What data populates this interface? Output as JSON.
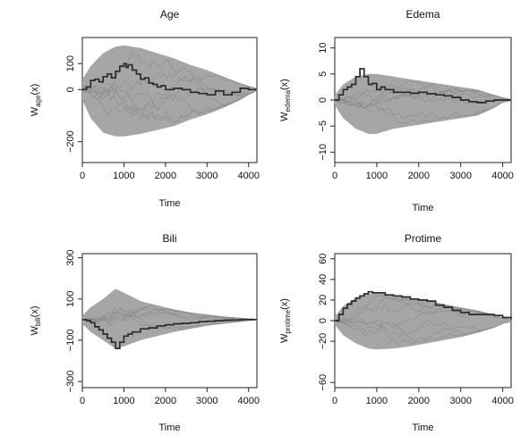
{
  "chart_data": [
    {
      "type": "line",
      "title": "Age",
      "xlabel": "Time",
      "ylabel_main": "W",
      "ylabel_sub": "age",
      "ylabel_tail": "(x)",
      "xlim": [
        0,
        4200
      ],
      "ylim": [
        -280,
        200
      ],
      "xticks": [
        0,
        1000,
        2000,
        3000,
        4000
      ],
      "yticks": [
        -200,
        0,
        100
      ],
      "xtick_labels": [
        "0",
        "1000",
        "2000",
        "3000",
        "4000"
      ],
      "ytick_labels": [
        "−200",
        "0",
        "100"
      ],
      "band": {
        "x": [
          0,
          200,
          500,
          800,
          1000,
          1400,
          1800,
          2200,
          2600,
          3000,
          3400,
          3800,
          4000,
          4200
        ],
        "upper": [
          40,
          90,
          140,
          165,
          170,
          160,
          140,
          120,
          95,
          75,
          50,
          25,
          15,
          5
        ],
        "lower": [
          -40,
          -110,
          -165,
          -180,
          -180,
          -170,
          -155,
          -140,
          -115,
          -95,
          -70,
          -40,
          -20,
          -5
        ]
      },
      "observed": {
        "x": [
          0,
          100,
          200,
          300,
          400,
          500,
          600,
          700,
          800,
          900,
          1000,
          1050,
          1100,
          1200,
          1300,
          1400,
          1500,
          1600,
          1700,
          1800,
          1900,
          2000,
          2200,
          2400,
          2600,
          2800,
          3000,
          3200,
          3400,
          3600,
          3800,
          4000,
          4200
        ],
        "y": [
          0,
          10,
          35,
          40,
          30,
          50,
          60,
          45,
          70,
          90,
          100,
          85,
          95,
          75,
          60,
          40,
          45,
          25,
          20,
          10,
          15,
          0,
          5,
          0,
          -10,
          -15,
          -20,
          -5,
          -20,
          -10,
          5,
          0,
          0
        ]
      }
    },
    {
      "type": "line",
      "title": "Edema",
      "xlabel": "Time",
      "ylabel_main": "W",
      "ylabel_sub": "edema",
      "ylabel_tail": "(x)",
      "xlim": [
        0,
        4200
      ],
      "ylim": [
        -12,
        12
      ],
      "xticks": [
        0,
        1000,
        2000,
        3000,
        4000
      ],
      "yticks": [
        -10,
        -5,
        0,
        5,
        10
      ],
      "xtick_labels": [
        "0",
        "1000",
        "2000",
        "3000",
        "4000"
      ],
      "ytick_labels": [
        "−10",
        "−5",
        "0",
        "5",
        "10"
      ],
      "band": {
        "x": [
          0,
          200,
          500,
          800,
          1000,
          1400,
          1800,
          2200,
          2600,
          3000,
          3400,
          3800,
          4000,
          4200
        ],
        "upper": [
          1,
          3,
          4.5,
          5,
          5,
          4.5,
          4,
          3.5,
          3,
          2.5,
          2,
          1,
          0.5,
          0.1
        ],
        "lower": [
          -1,
          -3.5,
          -5.5,
          -6.5,
          -6.5,
          -5.5,
          -5,
          -4.5,
          -4,
          -3.5,
          -3,
          -1.5,
          -0.5,
          -0.1
        ]
      },
      "observed": {
        "x": [
          0,
          100,
          200,
          300,
          400,
          500,
          600,
          700,
          800,
          900,
          1000,
          1100,
          1200,
          1400,
          1600,
          1800,
          2000,
          2200,
          2400,
          2600,
          2800,
          3000,
          3200,
          3400,
          3600,
          3800,
          4000,
          4200
        ],
        "y": [
          0,
          1,
          2,
          2.5,
          3,
          4.5,
          6,
          4.5,
          3,
          3.2,
          2,
          2.5,
          2,
          1.5,
          1.5,
          1.3,
          1.5,
          1.2,
          1,
          0.8,
          0.5,
          0,
          -0.3,
          -0.5,
          -0.2,
          0,
          0,
          0
        ]
      }
    },
    {
      "type": "line",
      "title": "Bili",
      "xlabel": "Time",
      "ylabel_main": "W",
      "ylabel_sub": "bili",
      "ylabel_tail": "(x)",
      "xlim": [
        0,
        4200
      ],
      "ylim": [
        -330,
        320
      ],
      "xticks": [
        0,
        1000,
        2000,
        3000,
        4000
      ],
      "yticks": [
        -300,
        -100,
        100,
        300
      ],
      "xtick_labels": [
        "0",
        "1000",
        "2000",
        "3000",
        "4000"
      ],
      "ytick_labels": [
        "−300",
        "−100",
        "100",
        "300"
      ],
      "band": {
        "x": [
          0,
          200,
          500,
          800,
          1000,
          1400,
          1800,
          2200,
          2600,
          3000,
          3400,
          3800,
          4000,
          4200
        ],
        "upper": [
          20,
          60,
          100,
          150,
          130,
          90,
          70,
          50,
          35,
          25,
          15,
          8,
          5,
          2
        ],
        "lower": [
          -20,
          -60,
          -100,
          -140,
          -130,
          -100,
          -80,
          -60,
          -45,
          -30,
          -20,
          -10,
          -5,
          -2
        ]
      },
      "observed": {
        "x": [
          0,
          100,
          200,
          300,
          400,
          500,
          600,
          700,
          800,
          900,
          1000,
          1100,
          1200,
          1400,
          1600,
          1800,
          2000,
          2200,
          2400,
          2600,
          2800,
          3000,
          3200,
          3400,
          3600,
          3800,
          4000,
          4200
        ],
        "y": [
          0,
          -5,
          -15,
          -35,
          -50,
          -70,
          -90,
          -110,
          -140,
          -110,
          -80,
          -70,
          -60,
          -45,
          -40,
          -30,
          -25,
          -20,
          -18,
          -15,
          -10,
          -8,
          -5,
          -3,
          -2,
          0,
          0,
          0
        ]
      }
    },
    {
      "type": "line",
      "title": "Protime",
      "xlabel": "Time",
      "ylabel_main": "W",
      "ylabel_sub": "protime",
      "ylabel_tail": "(x)",
      "xlim": [
        0,
        4200
      ],
      "ylim": [
        -65,
        65
      ],
      "xticks": [
        0,
        1000,
        2000,
        3000,
        4000
      ],
      "yticks": [
        -60,
        -20,
        0,
        20,
        40,
        60
      ],
      "xtick_labels": [
        "0",
        "1000",
        "2000",
        "3000",
        "4000"
      ],
      "ytick_labels": [
        "−60",
        "−20",
        "0",
        "20",
        "40",
        "60"
      ],
      "band": {
        "x": [
          0,
          200,
          500,
          800,
          1000,
          1400,
          1800,
          2200,
          2600,
          3000,
          3400,
          3800,
          4000,
          4200
        ],
        "upper": [
          4,
          14,
          22,
          26,
          27,
          25,
          22,
          20,
          16,
          13,
          10,
          6,
          3,
          1
        ],
        "lower": [
          -4,
          -14,
          -22,
          -27,
          -28,
          -27,
          -25,
          -22,
          -19,
          -16,
          -12,
          -7,
          -3,
          -1
        ]
      },
      "observed": {
        "x": [
          0,
          100,
          200,
          300,
          400,
          500,
          600,
          700,
          800,
          900,
          1000,
          1200,
          1400,
          1600,
          1800,
          2000,
          2200,
          2400,
          2600,
          2800,
          3000,
          3200,
          3400,
          3600,
          3800,
          4000,
          4200
        ],
        "y": [
          0,
          6,
          12,
          16,
          19,
          22,
          24,
          26,
          28,
          27,
          27,
          25,
          24,
          23,
          21,
          20,
          19,
          15,
          13,
          10,
          8,
          6,
          6,
          6,
          5,
          3,
          1
        ]
      }
    }
  ],
  "colors": {
    "band": "#a6a6a6",
    "simulated": "#8a8a8a",
    "observed": "#2a2a2a",
    "axis": "#222222"
  }
}
